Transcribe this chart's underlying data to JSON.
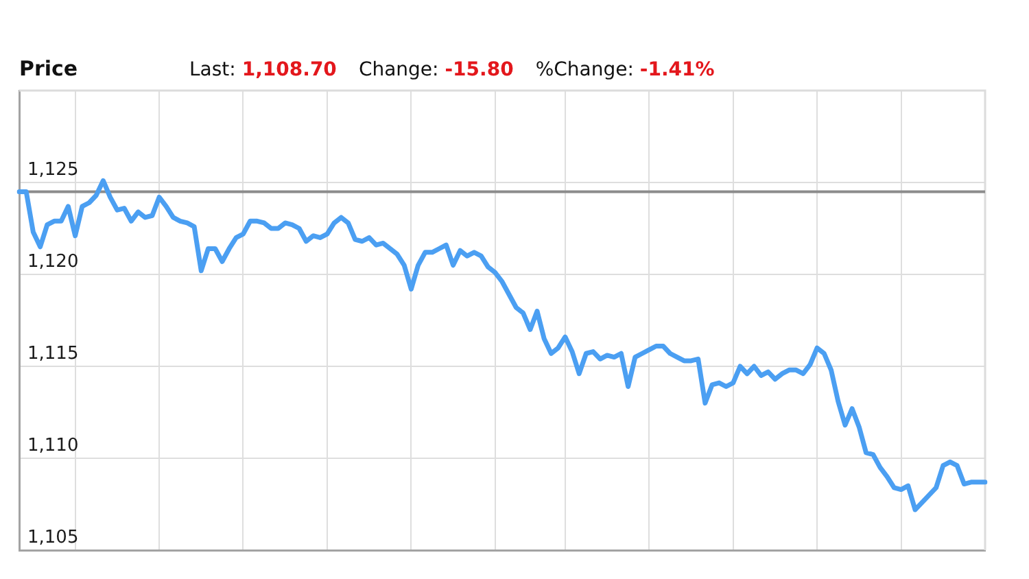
{
  "chart_data": {
    "type": "line",
    "title": "Price",
    "annotations": [
      "Last: 1,108.70",
      "Change: -15.80",
      "%Change: -1.41%"
    ],
    "categories": [
      null,
      null,
      null,
      null,
      null,
      null,
      null,
      null,
      null,
      null,
      null,
      null,
      null,
      null,
      null,
      null,
      null,
      null,
      null,
      null,
      null,
      null,
      null,
      null,
      null,
      null,
      null,
      null,
      null,
      null,
      null,
      null,
      null,
      null,
      null,
      null,
      null,
      null,
      null,
      null,
      null,
      null,
      null,
      null,
      null,
      null,
      null,
      null,
      null,
      null,
      null,
      null,
      null,
      null,
      null,
      null,
      null,
      null,
      null,
      null,
      null,
      null,
      null,
      null,
      null,
      null,
      null,
      null,
      null,
      null,
      null,
      null,
      null,
      null,
      null,
      null,
      null,
      null,
      null,
      null,
      null,
      null,
      null,
      null,
      null,
      null,
      null,
      null,
      null,
      null,
      null,
      null,
      null,
      null,
      null,
      null,
      null,
      null,
      null,
      null,
      null,
      null,
      null,
      null,
      null,
      null,
      null,
      null,
      null,
      null,
      null,
      null,
      null,
      null,
      null,
      null,
      null,
      null,
      null,
      null,
      null,
      null,
      null,
      null,
      null,
      null,
      null,
      null,
      null,
      null,
      null,
      null,
      null,
      null,
      null,
      null,
      null,
      null,
      null
    ],
    "series": [
      {
        "color": "#4b9ff2",
        "values": [
          1124.5,
          1124.5,
          1122.3,
          1121.5,
          1122.7,
          1122.9,
          1122.9,
          1123.7,
          1122.1,
          1123.7,
          1123.9,
          1124.3,
          1125.1,
          1124.2,
          1123.5,
          1123.6,
          1122.9,
          1123.4,
          1123.1,
          1123.2,
          1124.2,
          1123.7,
          1123.1,
          1122.9,
          1122.8,
          1122.6,
          1120.2,
          1121.4,
          1121.4,
          1120.7,
          1121.4,
          1122.0,
          1122.2,
          1122.9,
          1122.9,
          1122.8,
          1122.5,
          1122.5,
          1122.8,
          1122.7,
          1122.5,
          1121.8,
          1122.1,
          1122.0,
          1122.2,
          1122.8,
          1123.1,
          1122.8,
          1121.9,
          1121.8,
          1122.0,
          1121.6,
          1121.7,
          1121.4,
          1121.1,
          1120.5,
          1119.2,
          1120.5,
          1121.2,
          1121.2,
          1121.4,
          1121.6,
          1120.5,
          1121.3,
          1121.0,
          1121.2,
          1121.0,
          1120.4,
          1120.1,
          1119.6,
          1118.9,
          1118.2,
          1117.9,
          1117.0,
          1118.0,
          1116.5,
          1115.7,
          1116.0,
          1116.6,
          1115.8,
          1114.6,
          1115.7,
          1115.8,
          1115.4,
          1115.6,
          1115.5,
          1115.7,
          1113.9,
          1115.5,
          1115.7,
          1115.9,
          1116.1,
          1116.1,
          1115.7,
          1115.5,
          1115.3,
          1115.3,
          1115.4,
          1113.0,
          1114.0,
          1114.1,
          1113.9,
          1114.1,
          1115.0,
          1114.6,
          1115.0,
          1114.5,
          1114.7,
          1114.3,
          1114.6,
          1114.8,
          1114.8,
          1114.6,
          1115.1,
          1116.0,
          1115.7,
          1114.8,
          1113.1,
          1111.8,
          1112.7,
          1111.7,
          1110.3,
          1110.2,
          1109.5,
          1109.0,
          1108.4,
          1108.3,
          1108.5,
          1107.2,
          1107.6,
          1108.0,
          1108.4,
          1109.6,
          1109.8,
          1109.6,
          1108.6,
          1108.7,
          1108.7,
          1108.7
        ]
      }
    ],
    "ylim": [
      1105,
      1130
    ],
    "yticks": [
      {
        "value": 1105,
        "label": "1,105"
      },
      {
        "value": 1110,
        "label": "1,110"
      },
      {
        "value": 1115,
        "label": "1,115"
      },
      {
        "value": 1120,
        "label": "1,120"
      },
      {
        "value": 1125,
        "label": "1,125"
      }
    ],
    "ref_lines": [
      {
        "axis": "y",
        "value": 1124.5,
        "color": "#8c8c8c"
      }
    ],
    "grid": true,
    "marker": "none",
    "line_style": "solid"
  }
}
